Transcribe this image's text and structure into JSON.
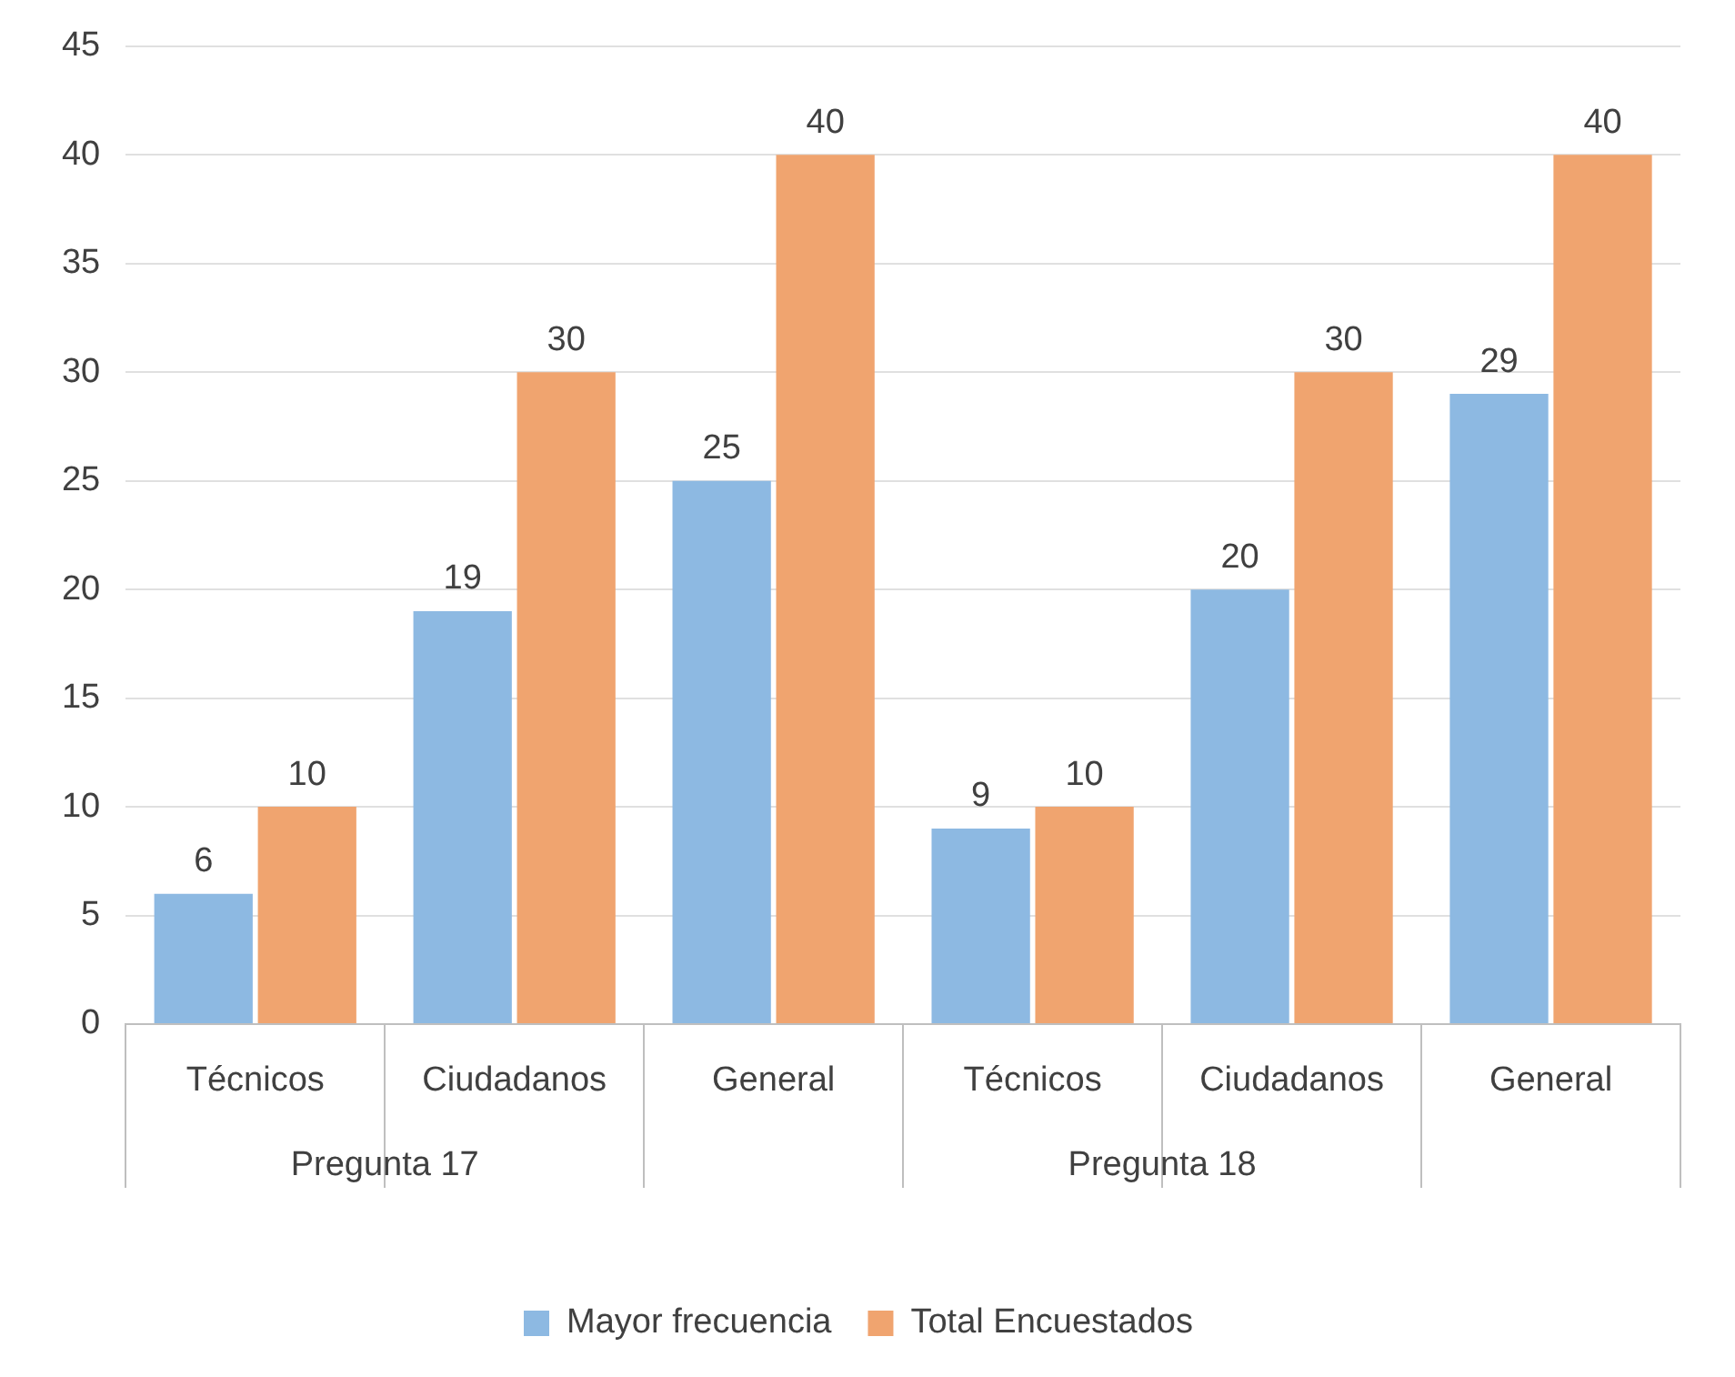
{
  "chart_data": {
    "type": "bar",
    "categories": [
      "Técnicos",
      "Ciudadanos",
      "General",
      "Técnicos",
      "Ciudadanos",
      "General"
    ],
    "series": [
      {
        "name": "Mayor frecuencia",
        "color": "#8db9e2",
        "values": [
          6,
          19,
          25,
          9,
          20,
          29
        ]
      },
      {
        "name": "Total Encuestados",
        "color": "#f0a46f",
        "values": [
          10,
          30,
          40,
          10,
          30,
          40
        ]
      }
    ],
    "ylim": [
      0,
      45
    ],
    "yticks": [
      0,
      5,
      10,
      15,
      20,
      25,
      30,
      35,
      40,
      45
    ],
    "grid": "y",
    "legend": "bottom",
    "data_labels": true,
    "annotations": [
      "Pregunta 17",
      "Pregunta 18"
    ]
  }
}
